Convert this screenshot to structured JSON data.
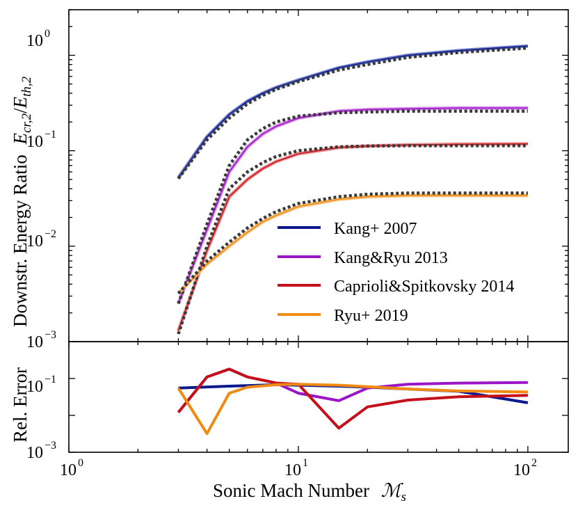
{
  "chart_data": [
    {
      "panel": "top",
      "type": "line",
      "xscale": "log",
      "yscale": "log",
      "xlim": [
        1,
        150
      ],
      "ylim": [
        0.001,
        3
      ],
      "ylabel_text": "Downstr. Energy Ratio",
      "ylabel_math_base": "E",
      "ylabel_math_sub_num": "cr,2",
      "ylabel_math_sub_den": "th,2",
      "yticks": [
        {
          "base": "10",
          "exp": "0",
          "value": 1
        },
        {
          "base": "10",
          "exp": "−1",
          "value": 0.1
        },
        {
          "base": "10",
          "exp": "−2",
          "value": 0.01
        },
        {
          "base": "10",
          "exp": "−3",
          "value": 0.001
        }
      ],
      "legend_position": "lower-right",
      "series": [
        {
          "name": "Kang+ 2007",
          "color": "#0a1a8c",
          "thin_color": "#7986cb",
          "x": [
            3,
            4,
            5,
            6,
            7,
            8,
            10,
            15,
            20,
            30,
            50,
            100
          ],
          "values": [
            0.052,
            0.14,
            0.24,
            0.33,
            0.4,
            0.46,
            0.55,
            0.74,
            0.85,
            1.0,
            1.12,
            1.25
          ],
          "fit_values": [
            0.051,
            0.13,
            0.22,
            0.31,
            0.38,
            0.44,
            0.53,
            0.7,
            0.8,
            0.95,
            1.07,
            1.19
          ]
        },
        {
          "name": "Kang&Ryu 2013",
          "color": "#9b16c7",
          "thin_color": "#d68be8",
          "x": [
            3,
            4,
            5,
            6,
            7,
            8,
            10,
            15,
            20,
            30,
            50,
            100
          ],
          "values": [
            0.0025,
            0.015,
            0.06,
            0.11,
            0.15,
            0.18,
            0.22,
            0.26,
            0.27,
            0.275,
            0.28,
            0.28
          ],
          "fit_values": [
            0.0025,
            0.017,
            0.07,
            0.13,
            0.17,
            0.2,
            0.23,
            0.25,
            0.255,
            0.26,
            0.26,
            0.26
          ]
        },
        {
          "name": "Caprioli&Spitkovsky 2014",
          "color": "#c4101a",
          "thin_color": "#ec8f8f",
          "x": [
            3,
            4,
            5,
            6,
            7,
            8,
            10,
            15,
            20,
            30,
            50,
            100
          ],
          "values": [
            0.0013,
            0.009,
            0.033,
            0.05,
            0.065,
            0.077,
            0.093,
            0.108,
            0.112,
            0.115,
            0.117,
            0.118
          ],
          "fit_values": [
            0.0012,
            0.01,
            0.04,
            0.06,
            0.075,
            0.087,
            0.1,
            0.11,
            0.112,
            0.113,
            0.113,
            0.113
          ]
        },
        {
          "name": "Ryu+ 2019",
          "color": "#f08a12",
          "thin_color": "#f8c281",
          "x": [
            3,
            4,
            5,
            6,
            7,
            8,
            10,
            15,
            20,
            30,
            50,
            100
          ],
          "values": [
            0.0032,
            0.0065,
            0.01,
            0.014,
            0.018,
            0.021,
            0.026,
            0.031,
            0.033,
            0.034,
            0.034,
            0.034
          ],
          "fit_values": [
            0.0032,
            0.007,
            0.011,
            0.0155,
            0.0195,
            0.023,
            0.028,
            0.033,
            0.035,
            0.036,
            0.036,
            0.036
          ]
        }
      ]
    },
    {
      "panel": "bottom",
      "type": "line",
      "xscale": "log",
      "yscale": "log",
      "xlim": [
        1,
        150
      ],
      "ylim": [
        0.001,
        1
      ],
      "xlabel_text": "Sonic Mach Number",
      "xlabel_math_base": "ℳ",
      "xlabel_math_sub": "s",
      "ylabel_text": "Rel. Error",
      "xticks": [
        {
          "base": "10",
          "exp": "0",
          "value": 1
        },
        {
          "base": "10",
          "exp": "1",
          "value": 10
        },
        {
          "base": "10",
          "exp": "2",
          "value": 100
        }
      ],
      "yticks": [
        {
          "base": "10",
          "exp": "−1",
          "value": 0.1
        },
        {
          "base": "10",
          "exp": "−3",
          "value": 0.001
        }
      ],
      "series": [
        {
          "name": "Kang+ 2007",
          "color": "#0a1a8c",
          "x": [
            3,
            5,
            8,
            10,
            15,
            20,
            30,
            50,
            100
          ],
          "values": [
            0.055,
            0.062,
            0.068,
            0.066,
            0.062,
            0.058,
            0.052,
            0.045,
            0.022
          ]
        },
        {
          "name": "Kang&Ryu 2013",
          "color": "#9b16c7",
          "x": [
            3,
            4,
            5,
            6,
            7,
            8,
            10,
            15,
            20,
            30,
            50,
            100
          ],
          "values": [
            0.012,
            0.11,
            0.18,
            0.11,
            0.09,
            0.075,
            0.04,
            0.025,
            0.055,
            0.07,
            0.075,
            0.078
          ]
        },
        {
          "name": "Caprioli&Spitkovsky 2014",
          "color": "#c4101a",
          "x": [
            3,
            4,
            5,
            6,
            7,
            8,
            10,
            15,
            20,
            30,
            50,
            100
          ],
          "values": [
            0.012,
            0.11,
            0.18,
            0.11,
            0.09,
            0.075,
            0.07,
            0.0045,
            0.017,
            0.026,
            0.032,
            0.035
          ]
        },
        {
          "name": "Ryu+ 2019",
          "color": "#f08a12",
          "x": [
            3,
            4,
            5,
            6,
            7,
            8,
            10,
            15,
            20,
            30,
            50,
            100
          ],
          "values": [
            0.055,
            0.0032,
            0.04,
            0.058,
            0.063,
            0.068,
            0.07,
            0.066,
            0.06,
            0.052,
            0.046,
            0.043
          ]
        }
      ]
    }
  ]
}
